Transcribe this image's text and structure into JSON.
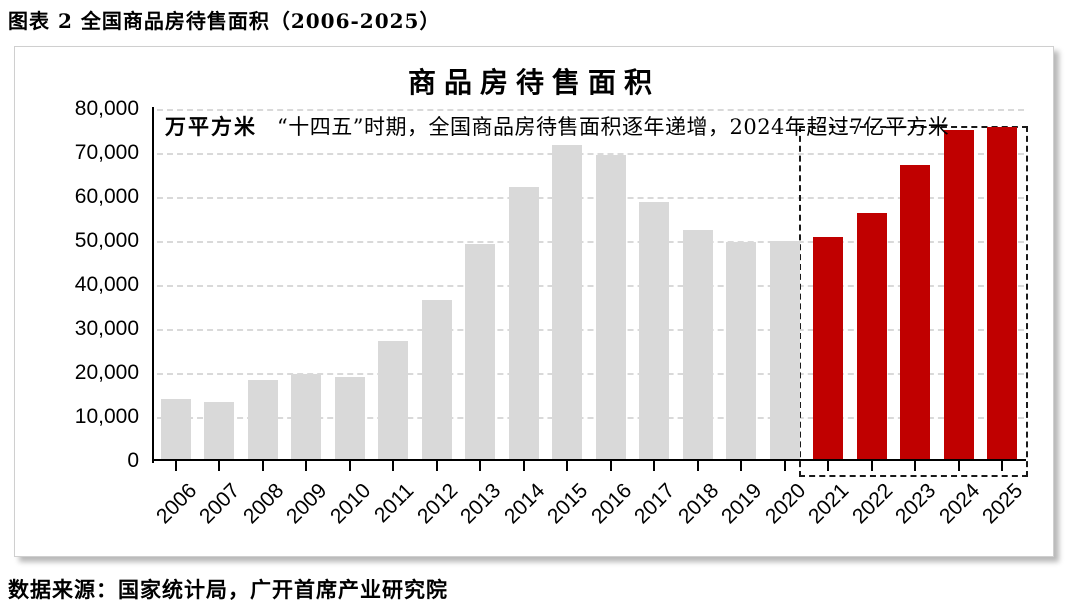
{
  "header": {
    "title": "图表 2 全国商品房待售面积（2006-2025）"
  },
  "source": {
    "text": "数据来源：国家统计局，广开首席产业研究院"
  },
  "chart_data": {
    "type": "bar",
    "title": "商品房待售面积",
    "unit_label": "万平方米",
    "annotation": "“十四五”时期，全国商品房待售面积逐年递增，2024年超过7亿平方米",
    "categories": [
      "2006",
      "2007",
      "2008",
      "2009",
      "2010",
      "2011",
      "2012",
      "2013",
      "2014",
      "2015",
      "2016",
      "2017",
      "2018",
      "2019",
      "2020",
      "2021",
      "2022",
      "2023",
      "2024",
      "2025"
    ],
    "values": [
      14100,
      13300,
      18400,
      19700,
      19000,
      27200,
      36500,
      49300,
      62200,
      71900,
      69500,
      58900,
      52400,
      49800,
      49900,
      51000,
      56400,
      67300,
      75300,
      75900
    ],
    "xlabel": "",
    "ylabel": "万平方米",
    "ylim": [
      0,
      80000
    ],
    "y_tick_step": 10000,
    "y_tick_labels": [
      "0",
      "10,000",
      "20,000",
      "30,000",
      "40,000",
      "50,000",
      "60,000",
      "70,000",
      "80,000"
    ],
    "grid": "horizontal-dashed",
    "legend": "none",
    "highlight_years": [
      "2021",
      "2022",
      "2023",
      "2024",
      "2025"
    ],
    "highlight_note": "dashed rectangle around 2021-2025 bars",
    "colors": {
      "bar_default": "#D9D9D9",
      "bar_highlight": "#C00000",
      "gridline": "#D9D9D9",
      "axis": "#000000",
      "highlight_box_border": "#1A1A1A"
    }
  }
}
